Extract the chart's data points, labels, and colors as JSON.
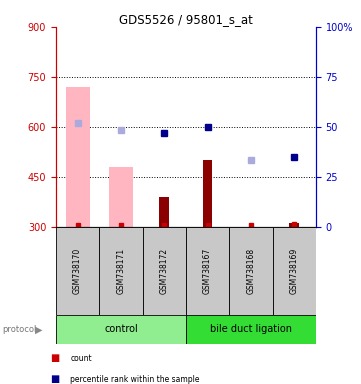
{
  "title": "GDS5526 / 95801_s_at",
  "samples": [
    "GSM738170",
    "GSM738171",
    "GSM738172",
    "GSM738167",
    "GSM738168",
    "GSM738169"
  ],
  "ylim_left": [
    300,
    900
  ],
  "ylim_right": [
    0,
    100
  ],
  "yticks_left": [
    300,
    450,
    600,
    750,
    900
  ],
  "yticks_right": [
    0,
    25,
    50,
    75,
    100
  ],
  "hlines": [
    450,
    600,
    750
  ],
  "bar_values_absent": [
    720,
    480,
    null,
    null,
    null,
    null
  ],
  "bar_values_present": [
    null,
    null,
    390,
    500,
    null,
    310
  ],
  "rank_absent": [
    610,
    590,
    null,
    null,
    500,
    null
  ],
  "rank_present": [
    null,
    null,
    580,
    598,
    null,
    510
  ],
  "count_values": [
    305,
    305,
    305,
    305,
    305,
    308
  ],
  "color_bar_absent": "#FFB6C1",
  "color_bar_present": "#8B0000",
  "color_rank_absent": "#AAAADD",
  "color_rank_present": "#00008B",
  "color_count": "#CC0000",
  "group_color_control": "#90EE90",
  "group_color_bdl": "#33DD33",
  "left_axis_color": "#CC0000",
  "right_axis_color": "#0000CC",
  "bg_color": "#FFFFFF"
}
